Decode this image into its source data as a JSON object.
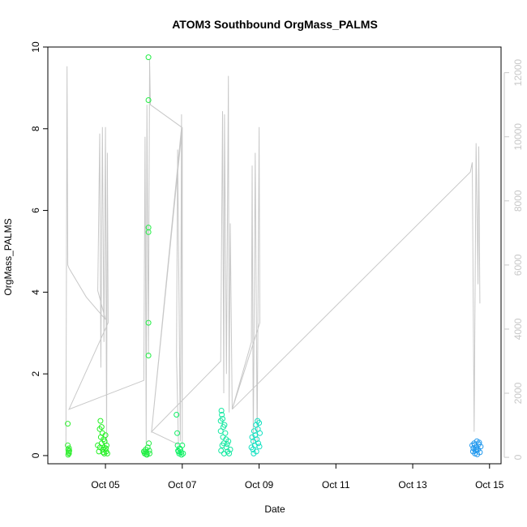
{
  "chart_data": {
    "type": "scatter",
    "title": "ATOM3 Southbound OrgMass_PALMS",
    "xlabel": "Date",
    "ylabel": "OrgMass_PALMS",
    "xlim": [
      3.5,
      15.3
    ],
    "ylim": [
      -0.2,
      10.0
    ],
    "yticks": [
      0,
      2,
      4,
      6,
      8,
      10
    ],
    "xticks": [
      {
        "value": 5,
        "label": "Oct 05"
      },
      {
        "value": 7,
        "label": "Oct 07"
      },
      {
        "value": 9,
        "label": "Oct 09"
      },
      {
        "value": 11,
        "label": "Oct 11"
      },
      {
        "value": 13,
        "label": "Oct 13"
      },
      {
        "value": 15,
        "label": "Oct 15"
      }
    ],
    "right_axis": {
      "ylim": [
        -200,
        12800
      ],
      "ticks": [
        0,
        2000,
        4000,
        6000,
        8000,
        10000,
        12000
      ],
      "color": "#c8c8c8"
    },
    "grid": false,
    "colors": {
      "altitude_line": "#c8c8c8"
    },
    "altitude_trace": [
      [
        3.97,
        300
      ],
      [
        4.0,
        12200
      ],
      [
        4.02,
        6000
      ],
      [
        4.05,
        5900
      ],
      [
        4.5,
        5000
      ],
      [
        5.0,
        4300
      ],
      [
        4.8,
        5200
      ],
      [
        4.85,
        10100
      ],
      [
        4.88,
        2800
      ],
      [
        4.92,
        10300
      ],
      [
        4.96,
        3600
      ],
      [
        5.0,
        10300
      ],
      [
        5.03,
        400
      ],
      [
        5.05,
        9500
      ],
      [
        5.07,
        4200
      ],
      [
        4.05,
        1500
      ],
      [
        6.0,
        2400
      ],
      [
        6.03,
        10000
      ],
      [
        6.06,
        400
      ],
      [
        6.08,
        11000
      ],
      [
        6.12,
        3200
      ],
      [
        6.15,
        12400
      ],
      [
        6.17,
        11000
      ],
      [
        6.98,
        10300
      ],
      [
        6.2,
        800
      ],
      [
        6.9,
        400
      ],
      [
        6.85,
        3200
      ],
      [
        6.88,
        9600
      ],
      [
        6.95,
        500
      ],
      [
        6.98,
        10700
      ],
      [
        7.0,
        400
      ],
      [
        7.0,
        10300
      ],
      [
        6.2,
        800
      ],
      [
        8.0,
        3000
      ],
      [
        8.05,
        10800
      ],
      [
        8.08,
        2000
      ],
      [
        8.1,
        10700
      ],
      [
        8.15,
        2600
      ],
      [
        8.2,
        11900
      ],
      [
        8.22,
        1400
      ],
      [
        8.25,
        7300
      ],
      [
        8.3,
        1500
      ],
      [
        8.8,
        3600
      ],
      [
        8.82,
        9100
      ],
      [
        8.85,
        400
      ],
      [
        8.9,
        9500
      ],
      [
        8.95,
        500
      ],
      [
        9.0,
        10300
      ],
      [
        9.02,
        4200
      ],
      [
        8.3,
        1500
      ],
      [
        14.5,
        8900
      ],
      [
        14.55,
        9200
      ],
      [
        14.6,
        800
      ],
      [
        14.65,
        9800
      ],
      [
        14.7,
        5400
      ],
      [
        14.72,
        9700
      ],
      [
        14.75,
        4800
      ]
    ],
    "series": [
      {
        "points": [
          [
            4.02,
            0.78
          ],
          [
            4.02,
            0.25
          ],
          [
            4.03,
            0.15
          ],
          [
            4.04,
            0.1
          ],
          [
            4.05,
            0.05
          ],
          [
            4.06,
            0.12
          ],
          [
            4.03,
            0.02
          ],
          [
            4.05,
            0.18
          ],
          [
            4.04,
            0.07
          ]
        ],
        "color": "#33ee33"
      },
      {
        "points": [
          [
            4.8,
            0.25
          ],
          [
            4.83,
            0.1
          ],
          [
            4.85,
            0.65
          ],
          [
            4.87,
            0.85
          ],
          [
            4.88,
            0.45
          ],
          [
            4.9,
            0.7
          ],
          [
            4.9,
            0.3
          ],
          [
            4.92,
            0.55
          ],
          [
            4.93,
            0.15
          ],
          [
            4.95,
            0.4
          ],
          [
            4.96,
            0.2
          ],
          [
            4.97,
            0.05
          ],
          [
            4.98,
            0.35
          ],
          [
            5.0,
            0.5
          ],
          [
            5.02,
            0.1
          ],
          [
            5.03,
            0.25
          ],
          [
            5.05,
            0.05
          ],
          [
            4.86,
            0.2
          ],
          [
            4.94,
            0.08
          ],
          [
            5.01,
            0.18
          ]
        ],
        "color": "#22f022"
      },
      {
        "points": [
          [
            6.0,
            0.1
          ],
          [
            6.02,
            0.05
          ],
          [
            6.05,
            0.15
          ],
          [
            6.07,
            0.08
          ],
          [
            6.08,
            0.02
          ],
          [
            6.1,
            0.2
          ],
          [
            6.12,
            9.75
          ],
          [
            6.12,
            8.7
          ],
          [
            6.12,
            5.58
          ],
          [
            6.12,
            5.47
          ],
          [
            6.12,
            3.25
          ],
          [
            6.12,
            2.45
          ],
          [
            6.13,
            0.3
          ],
          [
            6.14,
            0.12
          ],
          [
            6.15,
            0.05
          ],
          [
            6.03,
            0.1
          ],
          [
            6.06,
            0.03
          ]
        ],
        "color": "#22ee44"
      },
      {
        "points": [
          [
            6.85,
            1.0
          ],
          [
            6.87,
            0.55
          ],
          [
            6.88,
            0.25
          ],
          [
            6.9,
            0.1
          ],
          [
            6.92,
            0.05
          ],
          [
            6.95,
            0.15
          ],
          [
            6.97,
            0.08
          ],
          [
            7.0,
            0.25
          ],
          [
            7.02,
            0.05
          ],
          [
            6.98,
            0.02
          ],
          [
            6.89,
            0.12
          ],
          [
            6.93,
            0.18
          ]
        ],
        "color": "#11f066"
      },
      {
        "points": [
          [
            8.0,
            0.6
          ],
          [
            8.0,
            0.85
          ],
          [
            8.02,
            1.1
          ],
          [
            8.03,
            1.0
          ],
          [
            8.05,
            0.9
          ],
          [
            8.06,
            0.45
          ],
          [
            8.07,
            0.7
          ],
          [
            8.08,
            0.3
          ],
          [
            8.1,
            0.75
          ],
          [
            8.12,
            0.55
          ],
          [
            8.15,
            0.2
          ],
          [
            8.18,
            0.1
          ],
          [
            8.2,
            0.35
          ],
          [
            8.22,
            0.05
          ],
          [
            8.25,
            0.15
          ],
          [
            8.04,
            0.25
          ],
          [
            8.09,
            0.05
          ],
          [
            8.14,
            0.4
          ],
          [
            8.01,
            0.12
          ],
          [
            8.17,
            0.28
          ]
        ],
        "color": "#11e8a0"
      },
      {
        "points": [
          [
            8.8,
            0.2
          ],
          [
            8.82,
            0.45
          ],
          [
            8.85,
            0.35
          ],
          [
            8.87,
            0.6
          ],
          [
            8.9,
            0.5
          ],
          [
            8.92,
            0.75
          ],
          [
            8.94,
            0.4
          ],
          [
            8.96,
            0.85
          ],
          [
            8.98,
            0.3
          ],
          [
            9.0,
            0.8
          ],
          [
            9.02,
            0.55
          ],
          [
            8.84,
            0.15
          ],
          [
            8.89,
            0.25
          ],
          [
            8.93,
            0.1
          ],
          [
            8.97,
            0.65
          ],
          [
            8.86,
            0.05
          ],
          [
            9.01,
            0.22
          ]
        ],
        "color": "#11e0c0"
      },
      {
        "points": [
          [
            14.55,
            0.25
          ],
          [
            14.57,
            0.1
          ],
          [
            14.6,
            0.3
          ],
          [
            14.62,
            0.05
          ],
          [
            14.65,
            0.2
          ],
          [
            14.67,
            0.35
          ],
          [
            14.7,
            0.15
          ],
          [
            14.72,
            0.28
          ],
          [
            14.75,
            0.08
          ],
          [
            14.77,
            0.22
          ],
          [
            14.58,
            0.18
          ],
          [
            14.63,
            0.12
          ],
          [
            14.68,
            0.03
          ],
          [
            14.73,
            0.32
          ],
          [
            14.61,
            0.26
          ],
          [
            14.66,
            0.14
          ]
        ],
        "color": "#2299ee"
      }
    ]
  }
}
